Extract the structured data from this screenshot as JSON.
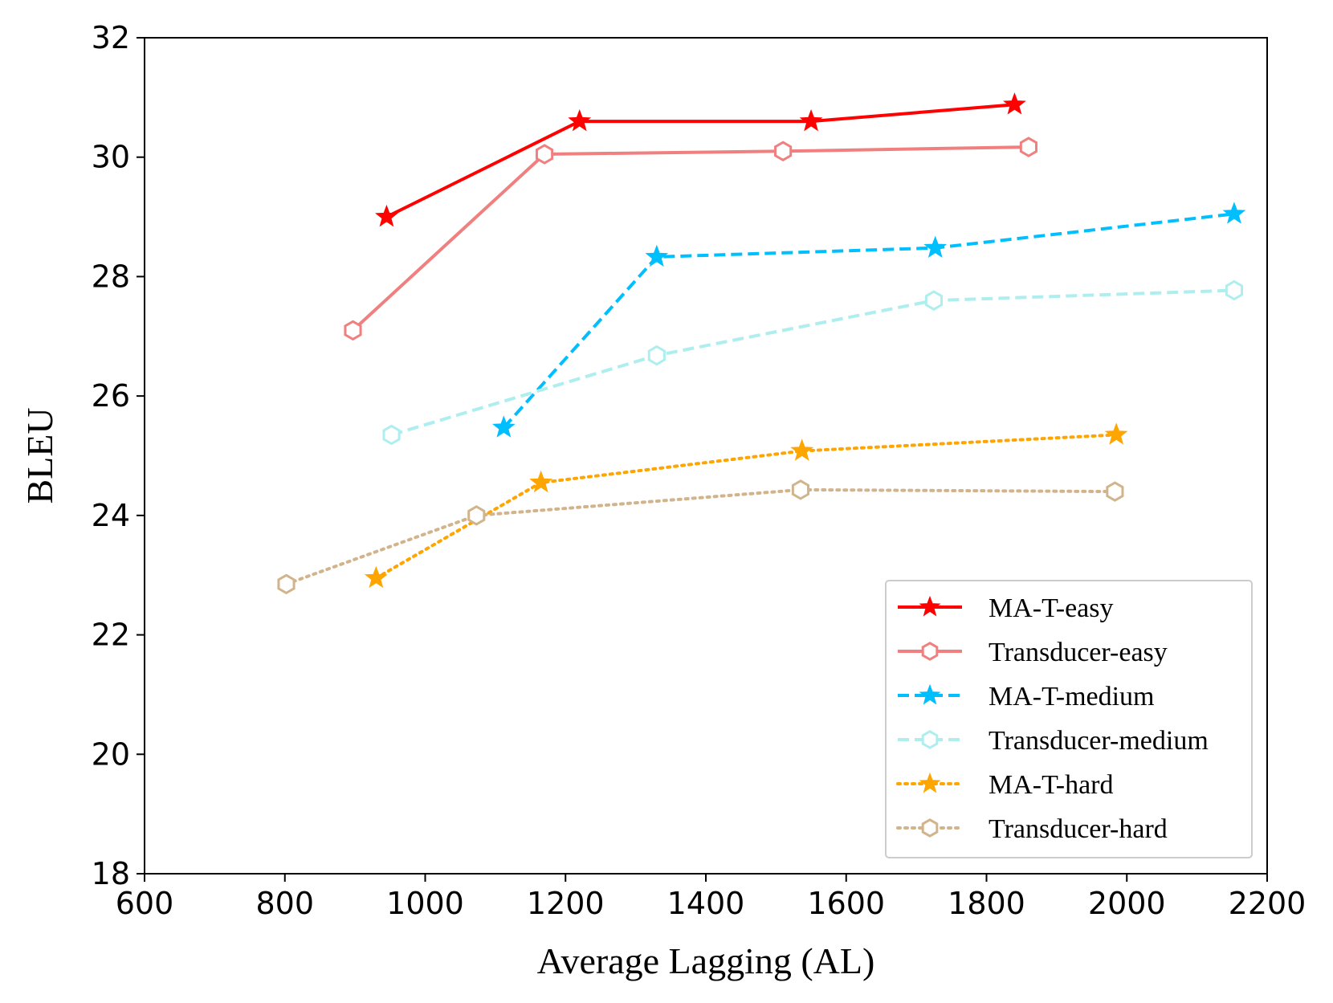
{
  "chart_data": {
    "type": "line",
    "title": "",
    "xlabel": "Average Lagging (AL)",
    "ylabel": "BLEU",
    "xlim": [
      600,
      2200
    ],
    "ylim": [
      18,
      32
    ],
    "xticks": [
      600,
      800,
      1000,
      1200,
      1400,
      1600,
      1800,
      2000,
      2200
    ],
    "yticks": [
      18,
      20,
      22,
      24,
      26,
      28,
      30,
      32
    ],
    "xtick_labels": [
      "600",
      "800",
      "1000",
      "1200",
      "1400",
      "1600",
      "1800",
      "2000",
      "2200"
    ],
    "ytick_labels": [
      "18",
      "20",
      "22",
      "24",
      "26",
      "28",
      "30",
      "32"
    ],
    "grid": false,
    "legend_position": "lower-right",
    "series": [
      {
        "name": "MA-T-easy",
        "color": "#ff0000",
        "dash": "solid",
        "marker": "star",
        "x": [
          945,
          1220,
          1550,
          1840
        ],
        "y": [
          29.0,
          30.6,
          30.6,
          30.88
        ]
      },
      {
        "name": "Transducer-easy",
        "color": "#f08080",
        "dash": "solid",
        "marker": "hexagon",
        "x": [
          897,
          1170,
          1510,
          1860
        ],
        "y": [
          27.1,
          30.05,
          30.1,
          30.17
        ]
      },
      {
        "name": "MA-T-medium",
        "color": "#00bfff",
        "dash": "dashed",
        "marker": "star",
        "x": [
          1112,
          1330,
          1727,
          2153
        ],
        "y": [
          25.47,
          28.33,
          28.48,
          29.05
        ]
      },
      {
        "name": "Transducer-medium",
        "color": "#afeeee",
        "dash": "dashed",
        "marker": "hexagon",
        "x": [
          952,
          1330,
          1725,
          2153
        ],
        "y": [
          25.35,
          26.68,
          27.6,
          27.77
        ]
      },
      {
        "name": "MA-T-hard",
        "color": "#ffa500",
        "dash": "dotted",
        "marker": "star",
        "x": [
          930,
          1165,
          1537,
          1985
        ],
        "y": [
          22.95,
          24.55,
          25.08,
          25.35
        ]
      },
      {
        "name": "Transducer-hard",
        "color": "#d2b48c",
        "dash": "dotted",
        "marker": "hexagon",
        "x": [
          802,
          1073,
          1535,
          1983
        ],
        "y": [
          22.85,
          24.0,
          24.43,
          24.4
        ]
      }
    ]
  }
}
